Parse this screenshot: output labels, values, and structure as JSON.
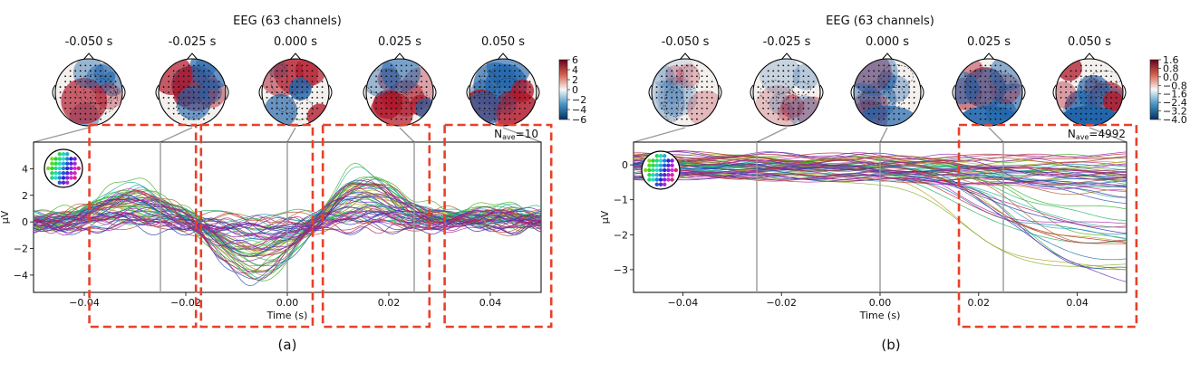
{
  "chart_data": [
    {
      "type": "line",
      "panel_label": "(a)",
      "title": "EEG (63 channels)",
      "topomap_times": [
        "-0.050 s",
        "-0.025 s",
        "0.000 s",
        "0.025 s",
        "0.050 s"
      ],
      "colorbar_ticks": [
        "6",
        "4",
        "2",
        "0",
        "−2",
        "−4",
        "−6"
      ],
      "colorbar_range": [
        -6,
        6
      ],
      "xlabel": "Time (s)",
      "ylabel": "µV",
      "xlim": [
        -0.05,
        0.05
      ],
      "ylim": [
        -5.3,
        6.0
      ],
      "xticks": [
        -0.04,
        -0.02,
        0.0,
        0.02,
        0.04
      ],
      "xtick_labels": [
        "−0.04",
        "−0.02",
        "0.00",
        "0.02",
        "0.04"
      ],
      "yticks": [
        -4,
        -2,
        0,
        2,
        4
      ],
      "ytick_labels": [
        "−4",
        "−2",
        "0",
        "2",
        "4"
      ],
      "time_markers": [
        -0.025,
        0.0,
        0.025
      ],
      "nave_label": "N",
      "nave_sub": "ave",
      "nave_value": "=10",
      "channel_count": 63,
      "highlight_ranges": [
        [
          -0.039,
          -0.018
        ],
        [
          -0.017,
          0.005
        ],
        [
          0.007,
          0.028
        ],
        [
          0.031,
          0.052
        ]
      ]
    },
    {
      "type": "line",
      "panel_label": "(b)",
      "title": "EEG (63 channels)",
      "topomap_times": [
        "-0.050 s",
        "-0.025 s",
        "0.000 s",
        "0.025 s",
        "0.050 s"
      ],
      "colorbar_ticks": [
        "1.6",
        "0.8",
        "0.0",
        "−0.8",
        "−1.6",
        "−2.4",
        "−3.2",
        "−4.0"
      ],
      "colorbar_range": [
        -4.0,
        1.9
      ],
      "xlabel": "Time (s)",
      "ylabel": "µV",
      "xlim": [
        -0.05,
        0.05
      ],
      "ylim": [
        -3.65,
        0.65
      ],
      "xticks": [
        -0.04,
        -0.02,
        0.0,
        0.02,
        0.04
      ],
      "xtick_labels": [
        "−0.04",
        "−0.02",
        "0.00",
        "0.02",
        "0.04"
      ],
      "yticks": [
        -3,
        -2,
        -1,
        0
      ],
      "ytick_labels": [
        "−3",
        "−2",
        "−1",
        "0"
      ],
      "time_markers": [
        -0.025,
        0.0,
        0.025
      ],
      "nave_label": "N",
      "nave_sub": "ave",
      "nave_value": "=4992",
      "channel_count": 63,
      "highlight_ranges": [
        [
          0.016,
          0.052
        ]
      ]
    }
  ],
  "colors": {
    "highlight": "#e8402a",
    "marker_line": "#9a9a9a",
    "topo_red": "#b2182b",
    "topo_blue": "#2166ac"
  }
}
